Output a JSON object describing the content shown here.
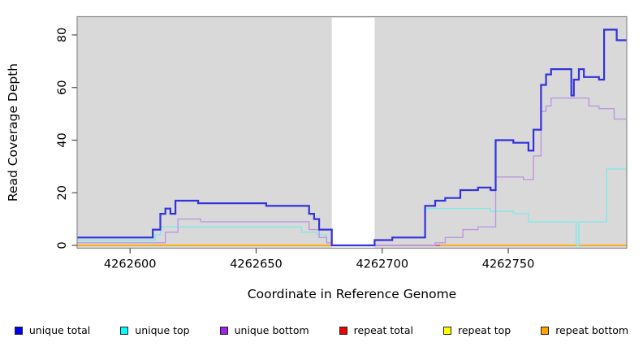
{
  "chart_data": {
    "type": "line",
    "subtype": "step-coverage",
    "title": "",
    "xlabel": "Coordinate in Reference Genome",
    "ylabel": "Read Coverage Depth",
    "xlim": [
      4262579,
      4262797
    ],
    "ylim": [
      0,
      87
    ],
    "x_ticks": [
      4262600,
      4262650,
      4262700,
      4262750
    ],
    "y_ticks": [
      0,
      20,
      40,
      60,
      80
    ],
    "grid": false,
    "panel_bg": "#d9d9d9",
    "panel_border": "#8c8c8c",
    "masked_region": {
      "x_start": 4262680,
      "x_end": 4262697,
      "color": "#ffffff"
    },
    "legend_position": "bottom",
    "draw_order": [
      "repeat top",
      "repeat total",
      "repeat bottom",
      "unique top",
      "unique bottom",
      "unique total"
    ],
    "series": [
      {
        "name": "unique total",
        "color": "#3232dc",
        "legend_color": "#0000ee",
        "line_width": 2.2,
        "segments": [
          [
            [
              4262579,
              3
            ],
            [
              4262609,
              6
            ],
            [
              4262612,
              12
            ],
            [
              4262614,
              14
            ],
            [
              4262616,
              12
            ],
            [
              4262618,
              17
            ],
            [
              4262627,
              16
            ],
            [
              4262654,
              15
            ],
            [
              4262671,
              12
            ],
            [
              4262673,
              10
            ],
            [
              4262675,
              6
            ],
            [
              4262680,
              0
            ],
            [
              4262697,
              2
            ],
            [
              4262704,
              3
            ],
            [
              4262717,
              15
            ],
            [
              4262721,
              17
            ],
            [
              4262725,
              18
            ],
            [
              4262731,
              21
            ],
            [
              4262738,
              22
            ],
            [
              4262743,
              21
            ],
            [
              4262745,
              40
            ],
            [
              4262752,
              39
            ],
            [
              4262758,
              36
            ],
            [
              4262760,
              44
            ],
            [
              4262763,
              61
            ],
            [
              4262765,
              65
            ],
            [
              4262767,
              67
            ],
            [
              4262775,
              57
            ],
            [
              4262776,
              63
            ],
            [
              4262778,
              67
            ],
            [
              4262780,
              64
            ],
            [
              4262786,
              63
            ],
            [
              4262788,
              82
            ],
            [
              4262793,
              78
            ],
            [
              4262797,
              78
            ]
          ]
        ]
      },
      {
        "name": "unique top",
        "color": "#82e8e8",
        "legend_color": "#00ffff",
        "line_width": 1.4,
        "segments": [
          [
            [
              4262579,
              2
            ],
            [
              4262610,
              4
            ],
            [
              4262612,
              7
            ],
            [
              4262668,
              5
            ],
            [
              4262674,
              4
            ],
            [
              4262678,
              1
            ],
            [
              4262680,
              0
            ],
            [
              4262697,
              2
            ],
            [
              4262704,
              3
            ],
            [
              4262717,
              14
            ],
            [
              4262743,
              13
            ],
            [
              4262752,
              12
            ],
            [
              4262758,
              9
            ],
            [
              4262777,
              0
            ],
            [
              4262778,
              9
            ],
            [
              4262789,
              29
            ],
            [
              4262797,
              29
            ]
          ]
        ]
      },
      {
        "name": "unique bottom",
        "color": "#bd97e2",
        "legend_color": "#a020f0",
        "line_width": 1.4,
        "segments": [
          [
            [
              4262579,
              1
            ],
            [
              4262614,
              5
            ],
            [
              4262619,
              10
            ],
            [
              4262628,
              9
            ],
            [
              4262671,
              6
            ],
            [
              4262675,
              3
            ],
            [
              4262678,
              1
            ],
            [
              4262680,
              0
            ],
            [
              4262721,
              1
            ],
            [
              4262725,
              3
            ],
            [
              4262732,
              6
            ],
            [
              4262738,
              7
            ],
            [
              4262745,
              26
            ],
            [
              4262756,
              25
            ],
            [
              4262760,
              34
            ],
            [
              4262763,
              51
            ],
            [
              4262765,
              53
            ],
            [
              4262767,
              56
            ],
            [
              4262782,
              53
            ],
            [
              4262786,
              52
            ],
            [
              4262792,
              48
            ],
            [
              4262797,
              48
            ]
          ]
        ]
      },
      {
        "name": "repeat total",
        "color": "#cc4466",
        "legend_color": "#ee0000",
        "line_width": 1.5,
        "segments": [
          [
            [
              4262697,
              0
            ],
            [
              4262723,
              0
            ]
          ]
        ]
      },
      {
        "name": "repeat top",
        "color": "#ffff00",
        "legend_color": "#ffff00",
        "line_width": 1.4,
        "segments": [
          [
            [
              4262579,
              0
            ],
            [
              4262680,
              0
            ]
          ]
        ]
      },
      {
        "name": "repeat bottom",
        "color": "#ffa500",
        "legend_color": "#ffa500",
        "line_width": 1.8,
        "segments": [
          [
            [
              4262579,
              0
            ],
            [
              4262680,
              0
            ]
          ],
          [
            [
              4262723,
              0
            ],
            [
              4262797,
              0
            ]
          ]
        ]
      }
    ]
  }
}
